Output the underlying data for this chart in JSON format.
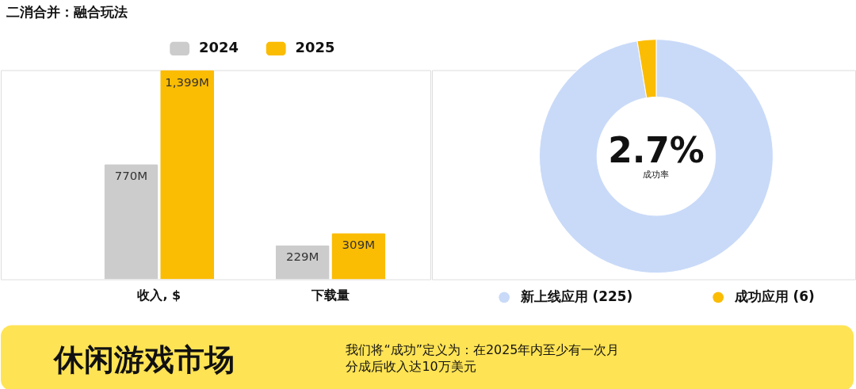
{
  "chart_data": [
    {
      "type": "bar",
      "title": "二消合并：融合玩法",
      "categories": [
        "收入, $",
        "下载量"
      ],
      "legend": "top",
      "series": [
        {
          "name": "2024",
          "color": "#cccccc",
          "values": [
            770,
            229
          ],
          "value_labels": [
            "770M",
            "229M"
          ]
        },
        {
          "name": "2025",
          "color": "#fbbc04",
          "values": [
            1399,
            309
          ],
          "value_labels": [
            "1,399M",
            "309M"
          ]
        }
      ]
    },
    {
      "type": "donut",
      "categories": [
        "新上线应用 (225)",
        "成功应用 (6)"
      ],
      "values": [
        225,
        6
      ],
      "colors": [
        "#c9daf8",
        "#fbbc04"
      ],
      "legend": "bottom",
      "annotations": [
        "2.7%",
        "成功率"
      ]
    },
    {
      "type": "other",
      "title": "休闲游戏市场",
      "annotations": [
        "我们将“成功”定义为：在2025年内至少有一次月分成后收入达10万美元"
      ]
    }
  ]
}
